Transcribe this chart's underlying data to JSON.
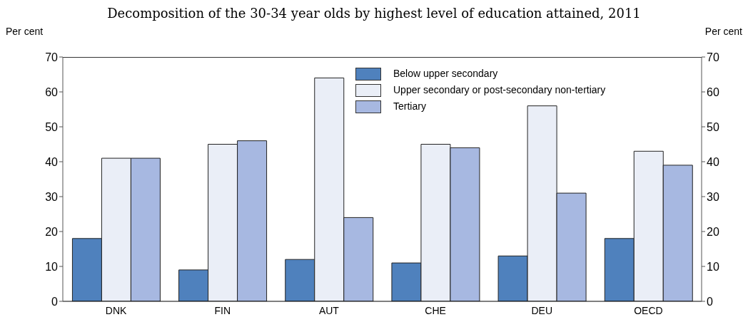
{
  "chart_data": {
    "type": "bar",
    "title": "Decomposition of the 30-34 year olds by highest level of education attained, 2011",
    "ylabel": "Per cent",
    "y2label": "Per cent",
    "categories": [
      "DNK",
      "FIN",
      "AUT",
      "CHE",
      "DEU",
      "OECD"
    ],
    "series": [
      {
        "name": "Below upper secondary",
        "color": "#4f81bd",
        "values": [
          18,
          9,
          12,
          11,
          13,
          18
        ]
      },
      {
        "name": "Upper secondary or post-secondary non-tertiary",
        "color": "#eaeef7",
        "values": [
          41,
          45,
          64,
          45,
          56,
          43
        ]
      },
      {
        "name": "Tertiary",
        "color": "#a7b8e1",
        "values": [
          41,
          46,
          24,
          44,
          31,
          39
        ]
      }
    ],
    "ylim": [
      0,
      70
    ],
    "yticks": [
      0,
      10,
      20,
      30,
      40,
      50,
      60,
      70
    ],
    "y2lim": [
      0,
      70
    ],
    "y2ticks": [
      0,
      10,
      20,
      30,
      40,
      50,
      60,
      70
    ],
    "grid": false,
    "legend": "top"
  }
}
